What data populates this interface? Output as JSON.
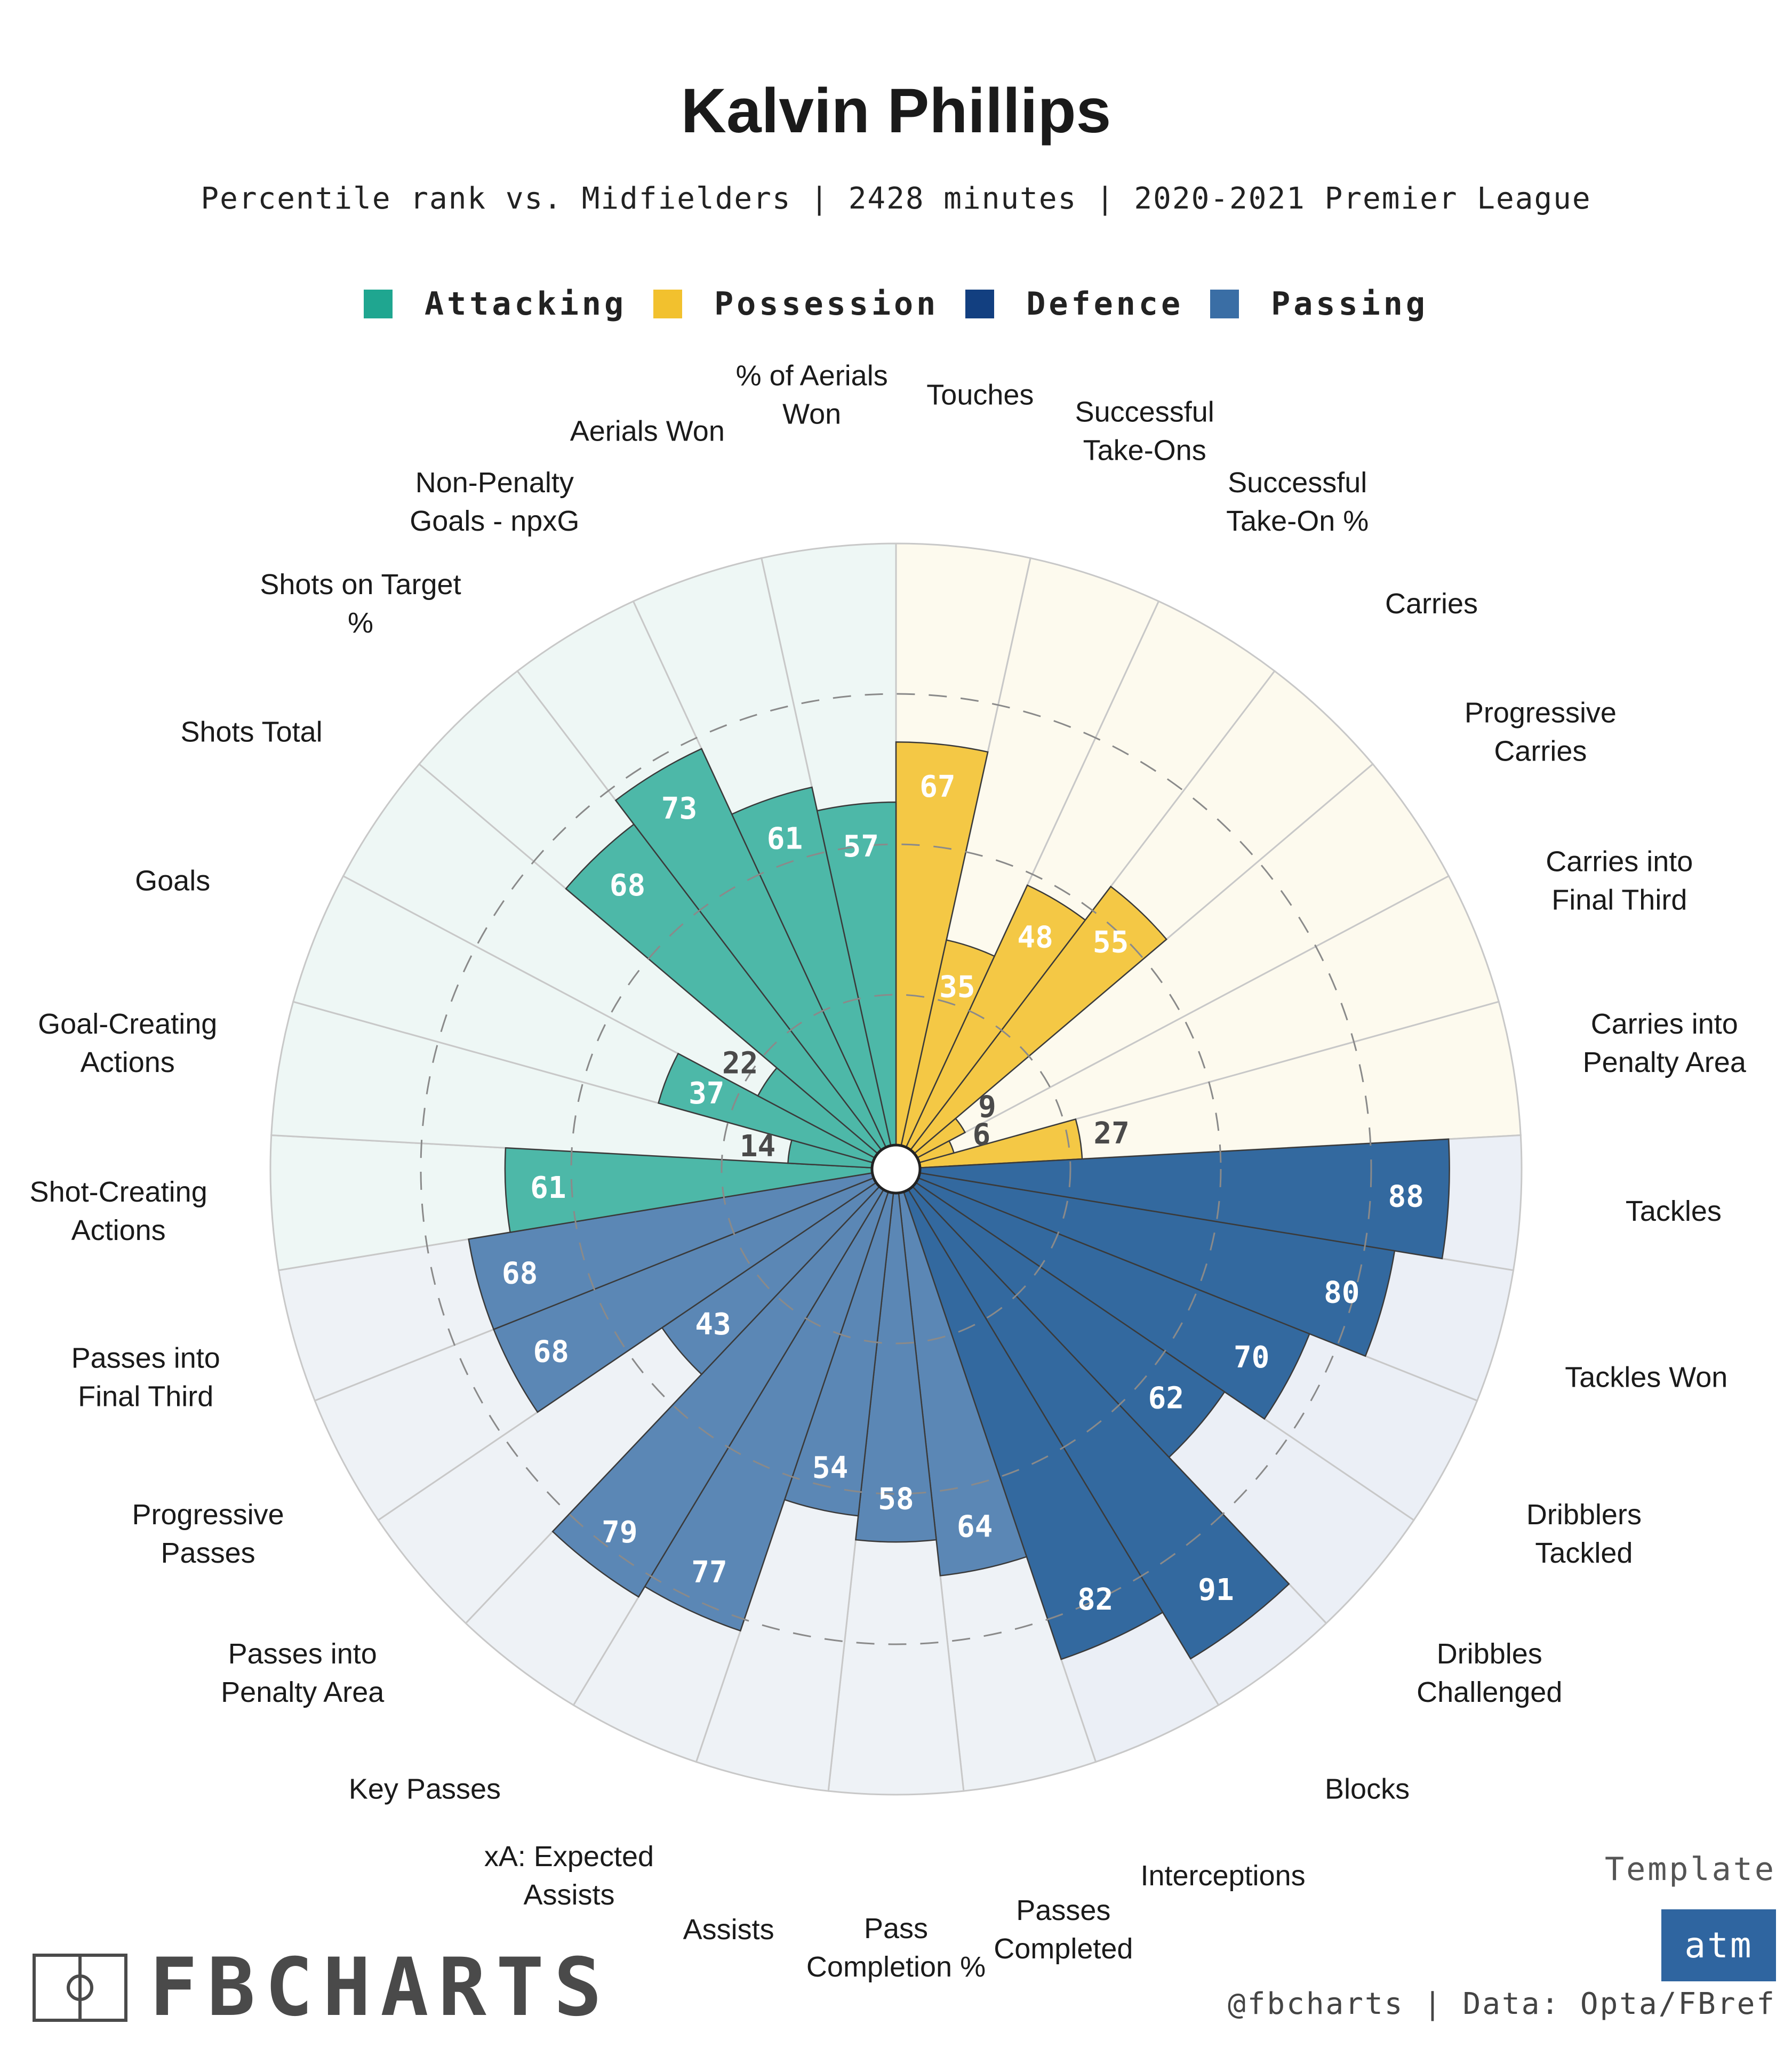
{
  "chart_data": {
    "type": "radial-bar",
    "title": "Kalvin Phillips",
    "subtitle": "Percentile rank vs. Midfielders | 2428 minutes | 2020-2021 Premier League",
    "range": [
      0,
      100
    ],
    "gridlines": [
      25,
      50,
      75
    ],
    "categories": [
      {
        "name": "Attacking",
        "color": "#1fa690",
        "bar_color": "#4db8a8",
        "bg_color": "#eef7f5"
      },
      {
        "name": "Possession",
        "color": "#f2c12e",
        "bar_color": "#f4c845",
        "bg_color": "#fdfaee"
      },
      {
        "name": "Defence",
        "color": "#123f80",
        "bar_color": "#33699f",
        "bg_color": "#ebeff6"
      },
      {
        "name": "Passing",
        "color": "#3a6ea5",
        "bar_color": "#5b87b5",
        "bg_color": "#eef2f6"
      }
    ],
    "stats": [
      {
        "label": "Touches",
        "value": 67,
        "group": "Possession"
      },
      {
        "label": "Successful\nTake-Ons",
        "value": 35,
        "group": "Possession"
      },
      {
        "label": "Successful\nTake-On %",
        "value": 48,
        "group": "Possession"
      },
      {
        "label": "Carries",
        "value": 55,
        "group": "Possession"
      },
      {
        "label": "Progressive\nCarries",
        "value": 9,
        "group": "Possession"
      },
      {
        "label": "Carries into\nFinal Third",
        "value": 6,
        "group": "Possession"
      },
      {
        "label": "Carries into\nPenalty Area",
        "value": 27,
        "group": "Possession"
      },
      {
        "label": "Tackles",
        "value": 88,
        "group": "Defence"
      },
      {
        "label": "Tackles Won",
        "value": 80,
        "group": "Defence"
      },
      {
        "label": "Dribblers\nTackled",
        "value": 70,
        "group": "Defence"
      },
      {
        "label": "Dribbles\nChallenged",
        "value": 62,
        "group": "Defence"
      },
      {
        "label": "Blocks",
        "value": 91,
        "group": "Defence"
      },
      {
        "label": "Interceptions",
        "value": 82,
        "group": "Defence"
      },
      {
        "label": "Passes\nCompleted",
        "value": 64,
        "group": "Passing"
      },
      {
        "label": "Pass\nCompletion %",
        "value": 58,
        "group": "Passing"
      },
      {
        "label": "Assists",
        "value": 54,
        "group": "Passing"
      },
      {
        "label": "xA: Expected\nAssists",
        "value": 77,
        "group": "Passing"
      },
      {
        "label": "Key Passes",
        "value": 79,
        "group": "Passing"
      },
      {
        "label": "Passes into\nPenalty Area",
        "value": 43,
        "group": "Passing"
      },
      {
        "label": "Progressive\nPasses",
        "value": 68,
        "group": "Passing"
      },
      {
        "label": "Passes into\nFinal Third",
        "value": 68,
        "group": "Passing"
      },
      {
        "label": "Shot-Creating\nActions",
        "value": 61,
        "group": "Attacking"
      },
      {
        "label": "Goal-Creating\nActions",
        "value": 14,
        "group": "Attacking"
      },
      {
        "label": "Goals",
        "value": 37,
        "group": "Attacking"
      },
      {
        "label": "Shots Total",
        "value": 22,
        "group": "Attacking"
      },
      {
        "label": "Shots on Target\n%",
        "value": 68,
        "group": "Attacking"
      },
      {
        "label": "Non-Penalty\nGoals - npxG",
        "value": 73,
        "group": "Attacking"
      },
      {
        "label": "Aerials Won",
        "value": 61,
        "group": "Attacking"
      },
      {
        "label": "% of Aerials\nWon",
        "value": 57,
        "group": "Attacking"
      }
    ]
  },
  "template": {
    "label": "Template",
    "badge": "atm"
  },
  "credit": "@fbcharts | Data: Opta/FBref",
  "brand": "FBCHARTS"
}
